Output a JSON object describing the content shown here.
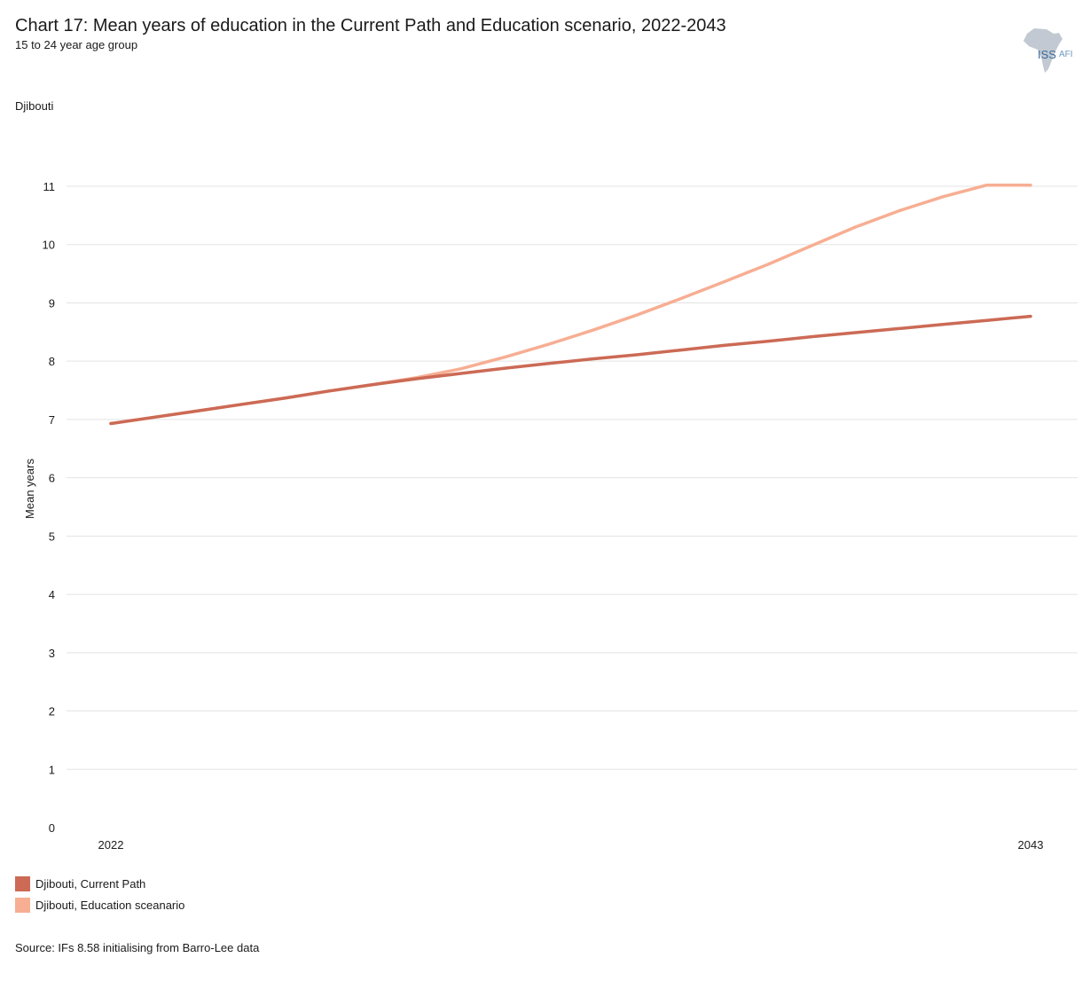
{
  "title": "Chart 17: Mean years of education in the Current Path and Education scenario, 2022-2043",
  "subtitle": "15 to 24 year age group",
  "country_label": "Djibouti",
  "source": "Source: IFs 8.58 initialising from Barro-Lee data",
  "logo": {
    "text": "ISS",
    "sub": "AFI",
    "icon": "africa-map-icon"
  },
  "colors": {
    "current_path": "#cc6a55",
    "education": "#f7ae93",
    "grid": "#e3e3e3"
  },
  "chart_data": {
    "type": "line",
    "title": "Chart 17: Mean years of education in the Current Path and Education scenario, 2022-2043",
    "subtitle": "15 to 24 year age group",
    "ylabel": "Mean years",
    "xlabel": "",
    "ylim": [
      0,
      11
    ],
    "yticks": [
      0,
      1,
      2,
      3,
      4,
      5,
      6,
      7,
      8,
      9,
      10,
      11
    ],
    "xlim": [
      2022,
      2043
    ],
    "xticks": [
      "2022",
      "2043"
    ],
    "grid": true,
    "legend_position": "bottom-left",
    "x": [
      2022,
      2023,
      2024,
      2025,
      2026,
      2027,
      2028,
      2029,
      2030,
      2031,
      2032,
      2033,
      2034,
      2035,
      2036,
      2037,
      2038,
      2039,
      2040,
      2041,
      2042,
      2043
    ],
    "series": [
      {
        "name": "Djibouti, Current Path",
        "values": [
          6.93,
          7.04,
          7.15,
          7.26,
          7.37,
          7.49,
          7.6,
          7.7,
          7.79,
          7.88,
          7.96,
          8.04,
          8.11,
          8.19,
          8.27,
          8.34,
          8.42,
          8.49,
          8.56,
          8.63,
          8.7,
          8.77
        ]
      },
      {
        "name": "Djibouti, Education sceanario",
        "values": [
          6.93,
          7.04,
          7.15,
          7.26,
          7.37,
          7.49,
          7.6,
          7.72,
          7.87,
          8.07,
          8.29,
          8.53,
          8.79,
          9.07,
          9.36,
          9.66,
          9.98,
          10.3,
          10.58,
          10.82,
          11.02,
          11.02
        ]
      }
    ]
  }
}
